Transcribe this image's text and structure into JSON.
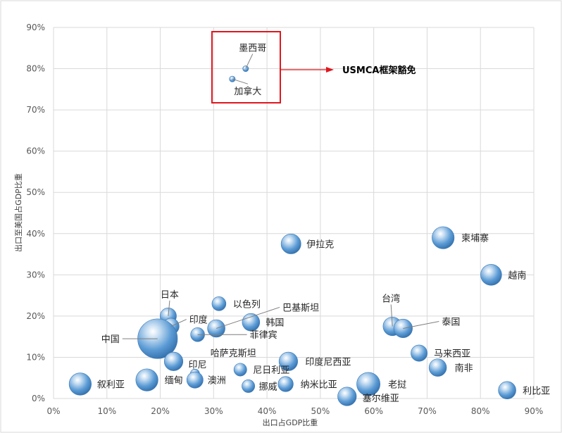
{
  "chart_data": {
    "type": "scatter",
    "xlabel": "出口占GDP比重",
    "ylabel": "出口至美国占GDP比重",
    "xlim": [
      0,
      90
    ],
    "ylim": [
      0,
      90
    ],
    "x_ticks": [
      "0%",
      "10%",
      "20%",
      "30%",
      "40%",
      "50%",
      "60%",
      "70%",
      "80%",
      "90%"
    ],
    "y_ticks": [
      "0%",
      "10%",
      "20%",
      "30%",
      "40%",
      "50%",
      "60%",
      "70%",
      "80%",
      "90%"
    ],
    "grid": true,
    "bubble_color": "#5b9bd5",
    "highlight_color": "#e0161e",
    "points": [
      {
        "label": "墨西哥",
        "x": 36.0,
        "y": 80.0,
        "size": 0.5
      },
      {
        "label": "加拿大",
        "x": 33.5,
        "y": 77.5,
        "size": 0.5
      },
      {
        "label": "伊拉克",
        "x": 44.5,
        "y": 37.5,
        "size": 1.7
      },
      {
        "label": "柬埔寨",
        "x": 73.0,
        "y": 39.0,
        "size": 1.9
      },
      {
        "label": "越南",
        "x": 82.0,
        "y": 30.0,
        "size": 1.8
      },
      {
        "label": "以色列",
        "x": 31.0,
        "y": 23.0,
        "size": 1.2
      },
      {
        "label": "日本",
        "x": 21.5,
        "y": 20.0,
        "size": 1.4
      },
      {
        "label": "印度",
        "x": 22.0,
        "y": 17.5,
        "size": 1.4
      },
      {
        "label": "巴基斯坦",
        "x": 30.5,
        "y": 17.0,
        "size": 1.5
      },
      {
        "label": "韩国",
        "x": 37.0,
        "y": 18.5,
        "size": 1.5
      },
      {
        "label": "菲律宾",
        "x": 27.0,
        "y": 15.5,
        "size": 1.2
      },
      {
        "label": "台湾",
        "x": 63.5,
        "y": 17.5,
        "size": 1.6
      },
      {
        "label": "泰国",
        "x": 65.5,
        "y": 17.0,
        "size": 1.6
      },
      {
        "label": "中国",
        "x": 19.5,
        "y": 14.5,
        "size": 3.4
      },
      {
        "label": "马来西亚",
        "x": 68.5,
        "y": 11.0,
        "size": 1.4
      },
      {
        "label": "印尼",
        "x": 22.5,
        "y": 9.0,
        "size": 1.6
      },
      {
        "label": "哈萨克斯坦",
        "x": 26.5,
        "y": 6.0,
        "size": 0.8
      },
      {
        "label": "印度尼西亚",
        "x": 44.0,
        "y": 9.0,
        "size": 1.6
      },
      {
        "label": "南非",
        "x": 72.0,
        "y": 7.5,
        "size": 1.5
      },
      {
        "label": "尼日利亚",
        "x": 35.0,
        "y": 7.0,
        "size": 1.1
      },
      {
        "label": "澳洲",
        "x": 26.5,
        "y": 4.5,
        "size": 1.4
      },
      {
        "label": "缅甸",
        "x": 17.5,
        "y": 4.5,
        "size": 1.9
      },
      {
        "label": "叙利亚",
        "x": 5.0,
        "y": 3.5,
        "size": 1.9
      },
      {
        "label": "挪威",
        "x": 36.5,
        "y": 3.0,
        "size": 1.1
      },
      {
        "label": "纳米比亚",
        "x": 43.5,
        "y": 3.5,
        "size": 1.3
      },
      {
        "label": "老挝",
        "x": 59.0,
        "y": 3.5,
        "size": 2.0
      },
      {
        "label": "塞尔维亚",
        "x": 55.0,
        "y": 0.5,
        "size": 1.6
      },
      {
        "label": "利比亚",
        "x": 85.0,
        "y": 2.0,
        "size": 1.5
      }
    ],
    "annotation": {
      "text": "USMCA框架豁免"
    }
  }
}
